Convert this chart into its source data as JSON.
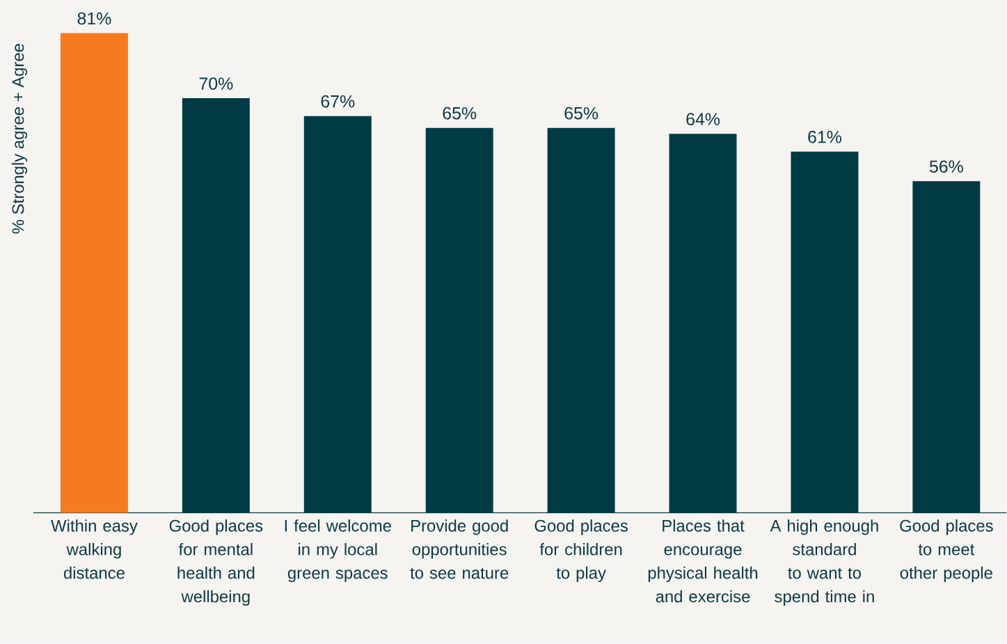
{
  "chart_data": {
    "type": "bar",
    "ylabel": "% Strongly agree + Agree",
    "categories": [
      "Within easy walking distance",
      "Good places for mental health and wellbeing",
      "I feel welcome in my local green spaces",
      "Provide good opportunities to see nature",
      "Good places for children to play",
      "Places that encourage physical health and exercise",
      "A high enough standard to want to spend time in",
      "Good places to meet other people"
    ],
    "values": [
      81,
      70,
      67,
      65,
      65,
      64,
      61,
      56
    ],
    "value_labels": [
      "81%",
      "70%",
      "67%",
      "65%",
      "65%",
      "64%",
      "61%",
      "56%"
    ],
    "colors": [
      "#f47b20",
      "#003a45",
      "#003a45",
      "#003a45",
      "#003a45",
      "#003a45",
      "#003a45",
      "#003a45"
    ],
    "tick_labels": "x",
    "grid": false
  }
}
